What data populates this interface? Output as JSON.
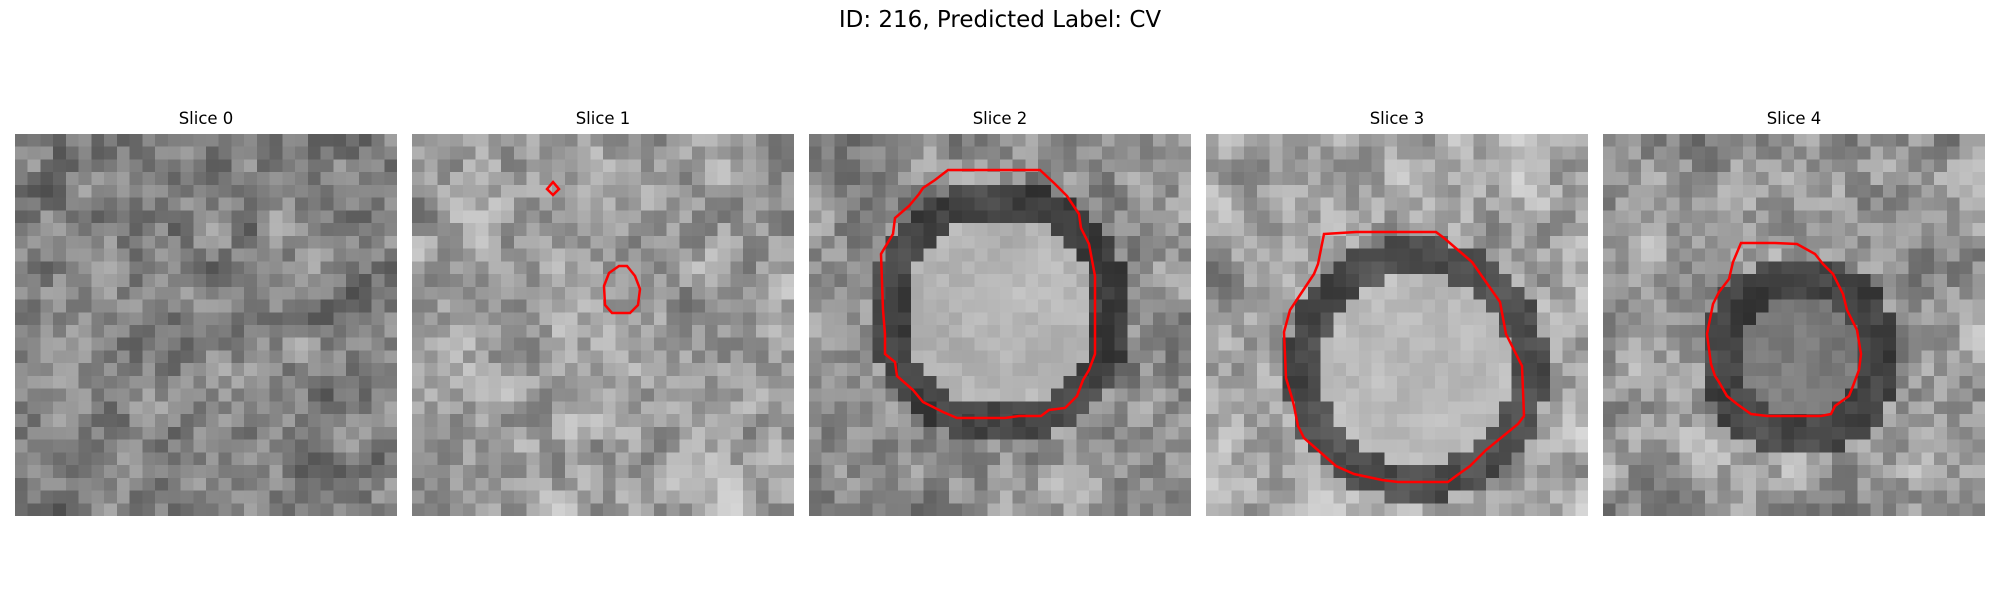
{
  "figure": {
    "title": "ID: 216, Predicted Label: CV"
  },
  "contour_color": "#ff0000",
  "slices": [
    {
      "title": "Slice 0",
      "contours": []
    },
    {
      "title": "Slice 1",
      "contours": [
        "red-contour-marker",
        "red-contour-small"
      ]
    },
    {
      "title": "Slice 2",
      "contours": [
        "red-contour-large"
      ]
    },
    {
      "title": "Slice 3",
      "contours": [
        "red-contour-large"
      ]
    },
    {
      "title": "Slice 4",
      "contours": [
        "red-contour-medium"
      ]
    }
  ]
}
